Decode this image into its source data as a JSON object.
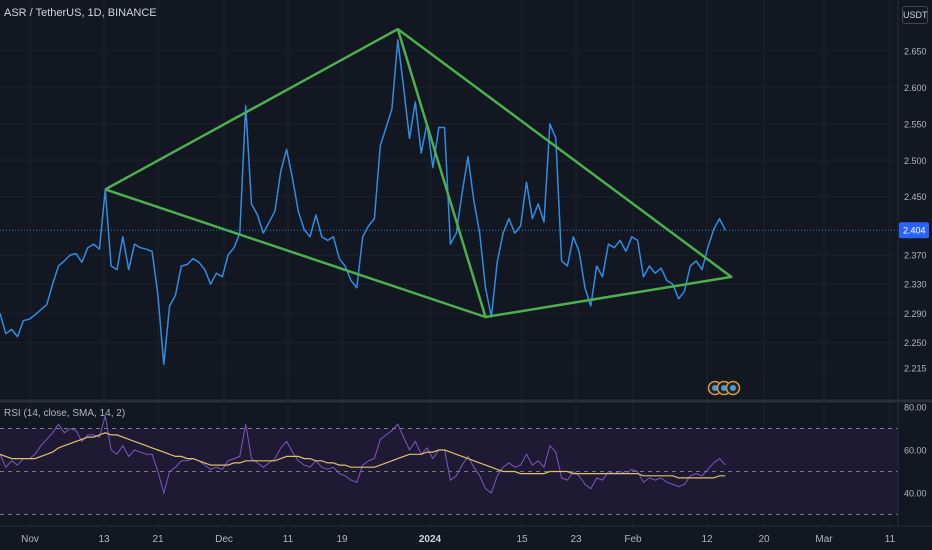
{
  "header": {
    "symbol_title": "ASR / TetherUS, 1D, BINANCE",
    "currency": "USDT"
  },
  "colors": {
    "background": "#131722",
    "price_line": "#2f8de4",
    "pattern_lines": "#4caf50",
    "rsi_line": "#7e57c2",
    "rsi_ma_line": "#e0c06b",
    "rsi_band_fill": "#1e1a33",
    "axis_text": "#b2b5be",
    "last_price_label_bg": "#2962ff"
  },
  "chart_data": [
    {
      "type": "line",
      "title": "ASR / TetherUS, 1D, BINANCE",
      "series": [
        {
          "values": [
            2.29,
            2.262,
            2.268,
            2.258,
            2.28,
            2.282,
            2.288,
            2.295,
            2.302,
            2.33,
            2.355,
            2.362,
            2.37,
            2.372,
            2.36,
            2.38,
            2.385,
            2.378,
            2.46,
            2.355,
            2.35,
            2.395,
            2.35,
            2.385,
            2.38,
            2.378,
            2.375,
            2.315,
            2.22,
            2.3,
            2.315,
            2.355,
            2.357,
            2.365,
            2.36,
            2.35,
            2.33,
            2.345,
            2.34,
            2.37,
            2.38,
            2.4,
            2.575,
            2.44,
            2.425,
            2.4,
            2.415,
            2.43,
            2.485,
            2.515,
            2.475,
            2.43,
            2.405,
            2.395,
            2.425,
            2.395,
            2.39,
            2.395,
            2.365,
            2.355,
            2.335,
            2.325,
            2.395,
            2.41,
            2.42,
            2.52,
            2.545,
            2.57,
            2.665,
            2.6,
            2.53,
            2.58,
            2.51,
            2.55,
            2.49,
            2.545,
            2.545,
            2.385,
            2.4,
            2.455,
            2.505,
            2.445,
            2.4,
            2.325,
            2.285,
            2.36,
            2.4,
            2.42,
            2.4,
            2.41,
            2.47,
            2.42,
            2.44,
            2.415,
            2.55,
            2.53,
            2.362,
            2.355,
            2.395,
            2.375,
            2.325,
            2.3,
            2.355,
            2.34,
            2.385,
            2.38,
            2.39,
            2.375,
            2.395,
            2.39,
            2.34,
            2.355,
            2.345,
            2.352,
            2.335,
            2.33,
            2.31,
            2.32,
            2.355,
            2.362,
            2.35,
            2.38,
            2.405,
            2.42,
            2.404
          ]
        }
      ],
      "x_ticks": [
        "Nov",
        "13",
        "21",
        "Dec",
        "11",
        "19",
        "2024",
        "15",
        "23",
        "Feb",
        "12",
        "20",
        "Mar",
        "11"
      ],
      "y_ticks": [
        "2.650",
        "2.600",
        "2.550",
        "2.500",
        "2.450",
        "2.404",
        "2.370",
        "2.330",
        "2.290",
        "2.250",
        "2.215"
      ],
      "last_price": "2.404",
      "annotations": [
        {
          "points": [
            [
              18,
              2.46
            ],
            [
              68,
              2.68
            ],
            [
              125,
              2.34
            ],
            [
              83,
              2.285
            ],
            [
              18,
              2.46
            ]
          ]
        },
        {
          "points": [
            [
              68,
              2.68
            ],
            [
              83,
              2.285
            ]
          ]
        }
      ]
    },
    {
      "type": "line",
      "title": "RSI (14, close, SMA, 14, 2)",
      "ylim": [
        20,
        80
      ],
      "y_ticks": [
        "80.00",
        "60.00",
        "40.00"
      ],
      "band": [
        30,
        70
      ],
      "midline": 50,
      "series": [
        {
          "values": [
            58,
            52,
            55,
            53,
            56,
            56,
            58,
            62,
            65,
            68,
            72,
            68,
            70,
            69,
            64,
            67,
            67,
            66,
            76,
            60,
            58,
            62,
            57,
            60,
            59,
            58,
            58,
            50,
            40,
            50,
            52,
            55,
            55,
            56,
            55,
            53,
            51,
            52,
            51,
            55,
            56,
            57,
            72,
            56,
            54,
            52,
            54,
            56,
            61,
            64,
            59,
            55,
            53,
            52,
            55,
            52,
            51,
            52,
            49,
            48,
            46,
            45,
            53,
            55,
            56,
            65,
            67,
            69,
            72,
            66,
            60,
            64,
            58,
            61,
            56,
            60,
            60,
            46,
            48,
            53,
            57,
            52,
            48,
            42,
            40,
            48,
            52,
            54,
            52,
            53,
            58,
            53,
            55,
            52,
            62,
            59,
            47,
            46,
            50,
            48,
            44,
            42,
            47,
            46,
            50,
            49,
            50,
            49,
            51,
            50,
            45,
            47,
            46,
            47,
            45,
            44,
            43,
            44,
            48,
            49,
            48,
            51,
            54,
            56,
            53
          ]
        },
        {
          "values": [
            58,
            57,
            56,
            56,
            56,
            56,
            56,
            57,
            58,
            59,
            61,
            62,
            63,
            64,
            65,
            66,
            66,
            67,
            68,
            67,
            67,
            66,
            65,
            64,
            63,
            62,
            61,
            60,
            59,
            58,
            57,
            57,
            56,
            56,
            55,
            54,
            53,
            53,
            53,
            53,
            54,
            54,
            55,
            55,
            55,
            55,
            55,
            55,
            56,
            57,
            57,
            57,
            56,
            56,
            55,
            55,
            54,
            54,
            53,
            53,
            52,
            52,
            52,
            52,
            52,
            53,
            54,
            55,
            56,
            57,
            58,
            58,
            58,
            59,
            59,
            60,
            60,
            59,
            58,
            57,
            56,
            55,
            54,
            53,
            52,
            51,
            50,
            50,
            50,
            49,
            49,
            49,
            49,
            49,
            50,
            50,
            50,
            50,
            49,
            49,
            49,
            49,
            49,
            49,
            49,
            49,
            49,
            49,
            49,
            49,
            48,
            48,
            48,
            48,
            48,
            48,
            47,
            47,
            47,
            47,
            47,
            47,
            47,
            48,
            48
          ]
        }
      ]
    }
  ]
}
